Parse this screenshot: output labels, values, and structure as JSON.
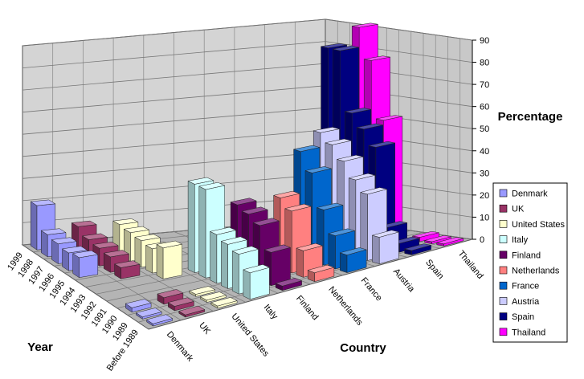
{
  "chart_data": {
    "type": "bar3d",
    "y_axis_title": "Percentage",
    "x_axis_title": "Country",
    "z_axis_title": "Year",
    "categories": [
      "1999",
      "1998",
      "1997",
      "1996",
      "1995",
      "1994",
      "1993",
      "1992",
      "1991",
      "1990",
      "1989",
      "Before 1989"
    ],
    "series": [
      {
        "name": "Denmark",
        "color": "#9999ff",
        "values": [
          20,
          10,
          9,
          8,
          9,
          null,
          null,
          null,
          null,
          2,
          1,
          1
        ]
      },
      {
        "name": "UK",
        "color": "#993366",
        "values": [
          null,
          12,
          9,
          8,
          7,
          5,
          null,
          null,
          null,
          3,
          2,
          1
        ]
      },
      {
        "name": "United States",
        "color": "#ffffcc",
        "values": [
          null,
          null,
          14,
          13,
          12,
          11,
          14,
          null,
          null,
          1,
          1,
          1
        ]
      },
      {
        "name": "Italy",
        "color": "#ccffff",
        "values": [
          null,
          null,
          null,
          null,
          null,
          null,
          40,
          40,
          22,
          20,
          18,
          12
        ]
      },
      {
        "name": "Finland",
        "color": "#660066",
        "values": [
          null,
          null,
          null,
          null,
          null,
          null,
          null,
          30,
          28,
          25,
          15,
          2
        ]
      },
      {
        "name": "Netherlands",
        "color": "#ff8080",
        "values": [
          null,
          null,
          null,
          null,
          null,
          null,
          null,
          null,
          32,
          28,
          12,
          4
        ]
      },
      {
        "name": "France",
        "color": "#0066cc",
        "values": [
          null,
          null,
          null,
          null,
          null,
          null,
          null,
          48,
          40,
          25,
          15,
          8
        ]
      },
      {
        "name": "Austria",
        "color": "#ccccff",
        "values": [
          null,
          null,
          null,
          null,
          null,
          null,
          52,
          48,
          42,
          35,
          30,
          12
        ]
      },
      {
        "name": "Spain",
        "color": "#000080",
        "values": [
          null,
          null,
          null,
          null,
          85,
          85,
          58,
          52,
          45,
          10,
          4,
          2
        ]
      },
      {
        "name": "Thailand",
        "color": "#ff00ff",
        "values": [
          null,
          null,
          null,
          null,
          92,
          78,
          52,
          null,
          null,
          2,
          1,
          1
        ]
      }
    ],
    "ylim": [
      0,
      90
    ],
    "yticks": [
      0,
      10,
      20,
      30,
      40,
      50,
      60,
      70,
      80,
      90
    ],
    "grid": true
  }
}
